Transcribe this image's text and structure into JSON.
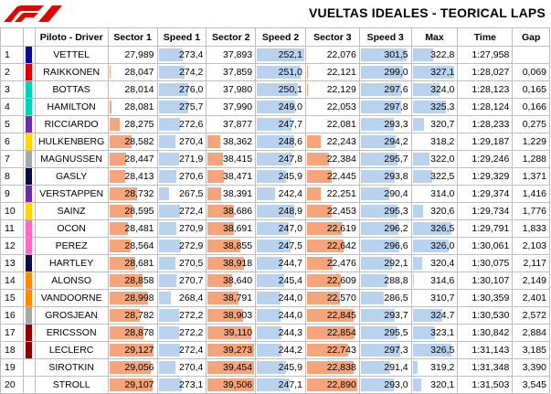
{
  "title": "VUELTAS IDEALES - TEORICAL LAPS",
  "logo": "f1-logo",
  "headers": [
    "",
    "",
    "Piloto - Driver",
    "Sector 1",
    "Speed 1",
    "Sector 2",
    "Speed 2",
    "Sector 3",
    "Speed 3",
    "Max",
    "Time",
    "Gap"
  ],
  "colors": {
    "orange": "#f4a57b",
    "blue": "#b9d3ee",
    "logo_red": "#e10600"
  },
  "rows": [
    {
      "pos": "1",
      "color": "#0a0a9a",
      "driver": "VETTEL",
      "s1": "27,989",
      "sp1": "273,4",
      "s2": "37,893",
      "sp2": "252,1",
      "s3": "22,076",
      "sp3": "301,5",
      "max": "322,8",
      "time": "1:27,958",
      "gap": "",
      "s1f": 0,
      "sp1f": 0.53,
      "s2f": 0,
      "sp2f": 1.0,
      "s3f": 0,
      "sp3f": 0.93,
      "maxf": 0.49
    },
    {
      "pos": "2",
      "color": "#dc0000",
      "driver": "RAIKKONEN",
      "s1": "28,047",
      "sp1": "274,2",
      "s2": "37,859",
      "sp2": "251,0",
      "s3": "22,121",
      "sp3": "299,0",
      "max": "327,1",
      "time": "1:28,027",
      "gap": "0,069",
      "s1f": 0.05,
      "sp1f": 0.57,
      "s2f": 0,
      "sp2f": 0.93,
      "s3f": 0.05,
      "sp3f": 0.86,
      "maxf": 0.96
    },
    {
      "pos": "3",
      "color": "#00d2be",
      "driver": "BOTTAS",
      "s1": "28,014",
      "sp1": "276,0",
      "s2": "37,980",
      "sp2": "250,1",
      "s3": "22,129",
      "sp3": "297,6",
      "max": "324,0",
      "time": "1:28,123",
      "gap": "0,165",
      "s1f": 0.03,
      "sp1f": 0.66,
      "s2f": 0.02,
      "sp2f": 0.88,
      "s3f": 0.06,
      "sp3f": 0.82,
      "maxf": 0.63
    },
    {
      "pos": "4",
      "color": "#00d2be",
      "driver": "HAMILTON",
      "s1": "28,081",
      "sp1": "275,7",
      "s2": "37,990",
      "sp2": "249,0",
      "s3": "22,053",
      "sp3": "297,8",
      "max": "325,3",
      "time": "1:28,124",
      "gap": "0,166",
      "s1f": 0.08,
      "sp1f": 0.65,
      "s2f": 0.02,
      "sp2f": 0.82,
      "s3f": 0,
      "sp3f": 0.83,
      "maxf": 0.77
    },
    {
      "pos": "5",
      "color": "#6b2ea8",
      "driver": "RICCIARDO",
      "s1": "28,275",
      "sp1": "272,6",
      "s2": "37,877",
      "sp2": "247,7",
      "s3": "22,081",
      "sp3": "293,3",
      "max": "320,7",
      "time": "1:28,233",
      "gap": "0,275",
      "s1f": 0.25,
      "sp1f": 0.49,
      "s2f": 0,
      "sp2f": 0.74,
      "s3f": 0,
      "sp3f": 0.69,
      "maxf": 0.28
    },
    {
      "pos": "6",
      "color": "#ffd700",
      "driver": "HULKENBERG",
      "s1": "28,582",
      "sp1": "270,4",
      "s2": "38,362",
      "sp2": "248,6",
      "s3": "22,243",
      "sp3": "294,2",
      "max": "318,2",
      "time": "1:29,187",
      "gap": "1,229",
      "s1f": 0.5,
      "sp1f": 0.39,
      "s2f": 0.3,
      "sp2f": 0.79,
      "s3f": 0.3,
      "sp3f": 0.72,
      "maxf": 0.04
    },
    {
      "pos": "7",
      "color": "#a8a8a8",
      "driver": "MAGNUSSEN",
      "s1": "28,447",
      "sp1": "271,9",
      "s2": "38,415",
      "sp2": "247,8",
      "s3": "22,384",
      "sp3": "295,7",
      "max": "322,0",
      "time": "1:29,246",
      "gap": "1,288",
      "s1f": 0.38,
      "sp1f": 0.46,
      "s2f": 0.35,
      "sp2f": 0.74,
      "s3f": 0.45,
      "sp3f": 0.76,
      "maxf": 0.41
    },
    {
      "pos": "8",
      "color": "#0a0a4a",
      "driver": "GASLY",
      "s1": "28,413",
      "sp1": "270,6",
      "s2": "38,471",
      "sp2": "245,9",
      "s3": "22,445",
      "sp3": "293,8",
      "max": "322,5",
      "time": "1:29,329",
      "gap": "1,371",
      "s1f": 0.36,
      "sp1f": 0.4,
      "s2f": 0.38,
      "sp2f": 0.63,
      "s3f": 0.5,
      "sp3f": 0.71,
      "maxf": 0.46
    },
    {
      "pos": "9",
      "color": "#6b2ea8",
      "driver": "VERSTAPPEN",
      "s1": "28,732",
      "sp1": "267,5",
      "s2": "38,391",
      "sp2": "242,4",
      "s3": "22,251",
      "sp3": "290,4",
      "max": "314,0",
      "time": "1:29,374",
      "gap": "1,416",
      "s1f": 0.62,
      "sp1f": 0.25,
      "s2f": 0.32,
      "sp2f": 0.4,
      "s3f": 0.3,
      "sp3f": 0.6,
      "maxf": 0
    },
    {
      "pos": "10",
      "color": "#ffd700",
      "driver": "SAINZ",
      "s1": "28,595",
      "sp1": "272,4",
      "s2": "38,686",
      "sp2": "248,9",
      "s3": "22,453",
      "sp3": "295,3",
      "max": "320,6",
      "time": "1:29,734",
      "gap": "1,776",
      "s1f": 0.51,
      "sp1f": 0.48,
      "s2f": 0.58,
      "sp2f": 0.8,
      "s3f": 0.5,
      "sp3f": 0.75,
      "maxf": 0.27
    },
    {
      "pos": "11",
      "color": "#ff69c8",
      "driver": "OCON",
      "s1": "28,481",
      "sp1": "270,9",
      "s2": "38,691",
      "sp2": "247,0",
      "s3": "22,619",
      "sp3": "296,2",
      "max": "326,5",
      "time": "1:29,791",
      "gap": "1,833",
      "s1f": 0.42,
      "sp1f": 0.41,
      "s2f": 0.58,
      "sp2f": 0.69,
      "s3f": 0.7,
      "sp3f": 0.78,
      "maxf": 0.89
    },
    {
      "pos": "12",
      "color": "#ff69c8",
      "driver": "PEREZ",
      "s1": "28,564",
      "sp1": "272,9",
      "s2": "38,855",
      "sp2": "247,5",
      "s3": "22,642",
      "sp3": "296,6",
      "max": "326,0",
      "time": "1:30,061",
      "gap": "2,103",
      "s1f": 0.48,
      "sp1f": 0.51,
      "s2f": 0.72,
      "sp2f": 0.72,
      "s3f": 0.72,
      "sp3f": 0.8,
      "maxf": 0.84
    },
    {
      "pos": "13",
      "color": "#0a0a4a",
      "driver": "HARTLEY",
      "s1": "28,681",
      "sp1": "270,5",
      "s2": "38,918",
      "sp2": "244,7",
      "s3": "22,476",
      "sp3": "292,1",
      "max": "320,4",
      "time": "1:30,075",
      "gap": "2,117",
      "s1f": 0.58,
      "sp1f": 0.39,
      "s2f": 0.78,
      "sp2f": 0.55,
      "s3f": 0.52,
      "sp3f": 0.65,
      "maxf": 0.25
    },
    {
      "pos": "14",
      "color": "#ff8c00",
      "driver": "ALONSO",
      "s1": "28,858",
      "sp1": "270,7",
      "s2": "38,640",
      "sp2": "245,4",
      "s3": "22,609",
      "sp3": "288,8",
      "max": "314,6",
      "time": "1:30,107",
      "gap": "2,149",
      "s1f": 0.72,
      "sp1f": 0.4,
      "s2f": 0.55,
      "sp2f": 0.6,
      "s3f": 0.68,
      "sp3f": 0.55,
      "maxf": 0.06
    },
    {
      "pos": "15",
      "color": "#ff8c00",
      "driver": "VANDOORNE",
      "s1": "28,998",
      "sp1": "268,4",
      "s2": "38,791",
      "sp2": "244,0",
      "s3": "22,570",
      "sp3": "286,5",
      "max": "310,7",
      "time": "1:30,359",
      "gap": "2,401",
      "s1f": 0.84,
      "sp1f": 0.29,
      "s2f": 0.67,
      "sp2f": 0.52,
      "s3f": 0.65,
      "sp3f": 0.48,
      "maxf": 0
    },
    {
      "pos": "16",
      "color": "#a8a8a8",
      "driver": "GROSJEAN",
      "s1": "28,782",
      "sp1": "272,2",
      "s2": "38,903",
      "sp2": "244,0",
      "s3": "22,845",
      "sp3": "293,7",
      "max": "324,7",
      "time": "1:30,530",
      "gap": "2,572",
      "s1f": 0.66,
      "sp1f": 0.47,
      "s2f": 0.77,
      "sp2f": 0.52,
      "s3f": 0.92,
      "sp3f": 0.71,
      "maxf": 0.7
    },
    {
      "pos": "17",
      "color": "#8b0000",
      "driver": "ERICSSON",
      "s1": "28,878",
      "sp1": "272,2",
      "s2": "39,110",
      "sp2": "244,3",
      "s3": "22,854",
      "sp3": "295,5",
      "max": "323,1",
      "time": "1:30,842",
      "gap": "2,884",
      "s1f": 0.74,
      "sp1f": 0.47,
      "s2f": 0.95,
      "sp2f": 0.54,
      "s3f": 0.93,
      "sp3f": 0.76,
      "maxf": 0.53
    },
    {
      "pos": "18",
      "color": "#8b0000",
      "driver": "LECLERC",
      "s1": "29,127",
      "sp1": "272,4",
      "s2": "39,273",
      "sp2": "244,2",
      "s3": "22,743",
      "sp3": "297,3",
      "max": "326,5",
      "time": "1:31,143",
      "gap": "3,185",
      "s1f": 0.95,
      "sp1f": 0.48,
      "s2f": 1.0,
      "sp2f": 0.53,
      "s3f": 0.82,
      "sp3f": 0.81,
      "maxf": 0.89
    },
    {
      "pos": "19",
      "color": "#ffffff",
      "driver": "SIROTKIN",
      "s1": "29,056",
      "sp1": "270,4",
      "s2": "39,454",
      "sp2": "245,9",
      "s3": "22,838",
      "sp3": "291,4",
      "max": "319,2",
      "time": "1:31,348",
      "gap": "3,390",
      "s1f": 0.9,
      "sp1f": 0.39,
      "s2f": 1.0,
      "sp2f": 0.63,
      "s3f": 0.92,
      "sp3f": 0.62,
      "maxf": 0.14
    },
    {
      "pos": "20",
      "color": "#ffffff",
      "driver": "STROLL",
      "s1": "29,107",
      "sp1": "273,1",
      "s2": "39,506",
      "sp2": "247,1",
      "s3": "22,890",
      "sp3": "293,0",
      "max": "320,1",
      "time": "1:31,503",
      "gap": "3,545",
      "s1f": 0.93,
      "sp1f": 0.52,
      "s2f": 1.0,
      "sp2f": 0.7,
      "s3f": 0.98,
      "sp3f": 0.68,
      "maxf": 0.22
    }
  ]
}
